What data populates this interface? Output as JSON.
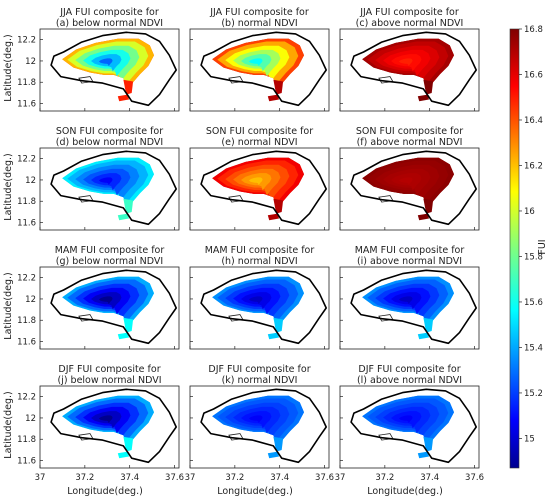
{
  "chart_data": {
    "type": "heatmap",
    "panels": [
      {
        "title": [
          "JJA FUI composite for",
          "(a) below normal NDVI"
        ],
        "season": "JJA",
        "anomaly": "below",
        "center_fui": 15.3,
        "edge_fui": 16.5
      },
      {
        "title": [
          "JJA  FUI composite for",
          "(b) normal NDVI"
        ],
        "season": "JJA",
        "anomaly": "normal",
        "center_fui": 15.6,
        "edge_fui": 16.7
      },
      {
        "title": [
          "JJA FUI composite for",
          "(c) above normal NDVI"
        ],
        "season": "JJA",
        "anomaly": "above",
        "center_fui": 16.5,
        "edge_fui": 16.8
      },
      {
        "title": [
          "SON FUI composite for",
          "(d) below normal NDVI"
        ],
        "season": "SON",
        "anomaly": "below",
        "center_fui": 15.1,
        "edge_fui": 15.7
      },
      {
        "title": [
          "SON FUI composite for",
          "(e) normal NDVI"
        ],
        "season": "SON",
        "anomaly": "normal",
        "center_fui": 16.2,
        "edge_fui": 16.7
      },
      {
        "title": [
          "SON FUI composite for",
          "(f) above normal NDVI"
        ],
        "season": "SON",
        "anomaly": "above",
        "center_fui": 16.7,
        "edge_fui": 16.8
      },
      {
        "title": [
          "MAM FUI composite for",
          "(g) below normal NDVI"
        ],
        "season": "MAM",
        "anomaly": "below",
        "center_fui": 14.9,
        "edge_fui": 15.6
      },
      {
        "title": [
          "MAM FUI composite for",
          "(h) normal NDVI"
        ],
        "season": "MAM",
        "anomaly": "normal",
        "center_fui": 15.0,
        "edge_fui": 15.5
      },
      {
        "title": [
          "MAM FUI composite for",
          "(i) above normal NDVI"
        ],
        "season": "MAM",
        "anomaly": "above",
        "center_fui": 15.0,
        "edge_fui": 15.5
      },
      {
        "title": [
          "DJF FUI composite for",
          "(j) below normal NDVI"
        ],
        "season": "DJF",
        "anomaly": "below",
        "center_fui": 14.9,
        "edge_fui": 15.6
      },
      {
        "title": [
          "DJF FUI composite for",
          "(k) normal NDVI"
        ],
        "season": "DJF",
        "anomaly": "normal",
        "center_fui": 15.1,
        "edge_fui": 15.4
      },
      {
        "title": [
          "DJF FUI composite for",
          "(l) above normal NDVI"
        ],
        "season": "DJF",
        "anomaly": "above",
        "center_fui": 15.1,
        "edge_fui": 15.4
      }
    ],
    "x_ticks": [
      "37",
      "37.2",
      "37.4",
      "37.6"
    ],
    "y_ticks": [
      "12.2",
      "12",
      "11.8",
      "11.6"
    ],
    "xlim": [
      37.0,
      37.62
    ],
    "ylim": [
      11.53,
      12.3
    ],
    "xlabel": "Longitude(deg.)",
    "ylabel": "Latitude(deg.)",
    "colorbar": {
      "label": "FUI",
      "range": [
        14.87,
        16.8
      ],
      "ticks": [
        "16.8",
        "16.6",
        "16.4",
        "16.2",
        "16",
        "15.8",
        "15.6",
        "15.4",
        "15.2",
        "15"
      ],
      "colormap": "jet"
    }
  }
}
